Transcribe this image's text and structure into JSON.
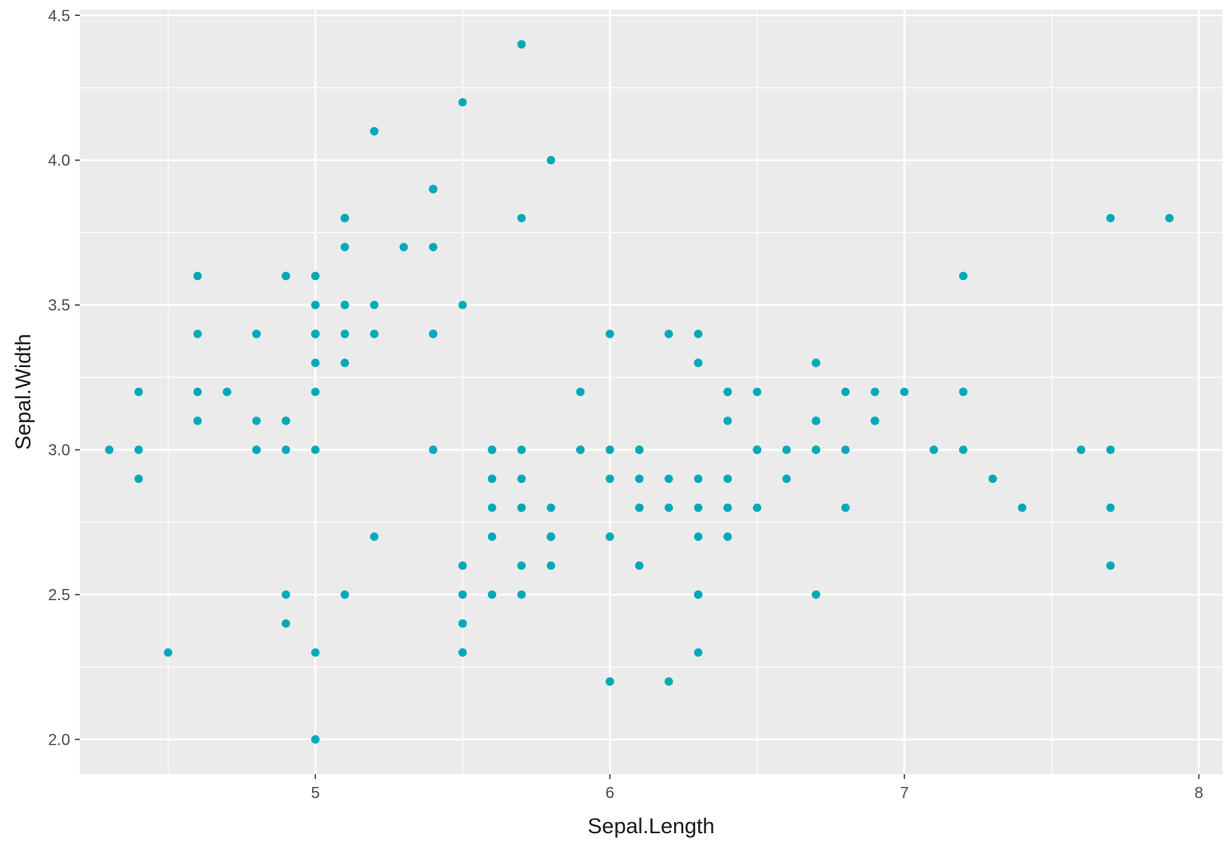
{
  "chart_data": {
    "type": "scatter",
    "xlabel": "Sepal.Length",
    "ylabel": "Sepal.Width",
    "xlim": [
      4.2,
      8.08
    ],
    "ylim": [
      1.88,
      4.52
    ],
    "x_ticks": [
      5,
      6,
      7,
      8
    ],
    "x_tick_labels": [
      "5",
      "6",
      "7",
      "8"
    ],
    "y_ticks": [
      2.0,
      2.5,
      3.0,
      3.5,
      4.0,
      4.5
    ],
    "y_tick_labels": [
      "2.0",
      "2.5",
      "3.0",
      "3.5",
      "4.0",
      "4.5"
    ],
    "grid": true,
    "panel_color": "#ebebeb",
    "grid_color": "#ffffff",
    "point_color": "#00a9b7",
    "legend": "none",
    "points": [
      [
        5.1,
        3.5
      ],
      [
        4.9,
        3.0
      ],
      [
        4.7,
        3.2
      ],
      [
        4.6,
        3.1
      ],
      [
        5.0,
        3.6
      ],
      [
        5.4,
        3.9
      ],
      [
        4.6,
        3.4
      ],
      [
        5.0,
        3.4
      ],
      [
        4.4,
        2.9
      ],
      [
        4.9,
        3.1
      ],
      [
        5.4,
        3.7
      ],
      [
        4.8,
        3.4
      ],
      [
        4.8,
        3.0
      ],
      [
        4.3,
        3.0
      ],
      [
        5.8,
        4.0
      ],
      [
        5.7,
        4.4
      ],
      [
        5.4,
        3.9
      ],
      [
        5.1,
        3.5
      ],
      [
        5.7,
        3.8
      ],
      [
        5.1,
        3.8
      ],
      [
        5.4,
        3.4
      ],
      [
        5.1,
        3.7
      ],
      [
        4.6,
        3.6
      ],
      [
        5.1,
        3.3
      ],
      [
        4.8,
        3.4
      ],
      [
        5.0,
        3.0
      ],
      [
        5.0,
        3.4
      ],
      [
        5.2,
        3.5
      ],
      [
        5.2,
        3.4
      ],
      [
        4.7,
        3.2
      ],
      [
        4.8,
        3.1
      ],
      [
        5.4,
        3.4
      ],
      [
        5.2,
        4.1
      ],
      [
        5.5,
        4.2
      ],
      [
        4.9,
        3.1
      ],
      [
        5.0,
        3.2
      ],
      [
        5.5,
        3.5
      ],
      [
        4.9,
        3.6
      ],
      [
        4.4,
        3.0
      ],
      [
        5.1,
        3.4
      ],
      [
        5.0,
        3.5
      ],
      [
        4.5,
        2.3
      ],
      [
        4.4,
        3.2
      ],
      [
        5.0,
        3.5
      ],
      [
        5.1,
        3.8
      ],
      [
        4.8,
        3.0
      ],
      [
        5.1,
        3.8
      ],
      [
        4.6,
        3.2
      ],
      [
        5.3,
        3.7
      ],
      [
        5.0,
        3.3
      ],
      [
        7.0,
        3.2
      ],
      [
        6.4,
        3.2
      ],
      [
        6.9,
        3.1
      ],
      [
        5.5,
        2.3
      ],
      [
        6.5,
        2.8
      ],
      [
        5.7,
        2.8
      ],
      [
        6.3,
        3.3
      ],
      [
        4.9,
        2.4
      ],
      [
        6.6,
        2.9
      ],
      [
        5.2,
        2.7
      ],
      [
        5.0,
        2.0
      ],
      [
        5.9,
        3.0
      ],
      [
        6.0,
        2.2
      ],
      [
        6.1,
        2.9
      ],
      [
        5.6,
        2.9
      ],
      [
        6.7,
        3.1
      ],
      [
        5.6,
        3.0
      ],
      [
        5.8,
        2.7
      ],
      [
        6.2,
        2.2
      ],
      [
        5.6,
        2.5
      ],
      [
        5.9,
        3.2
      ],
      [
        6.1,
        2.8
      ],
      [
        6.3,
        2.5
      ],
      [
        6.1,
        2.8
      ],
      [
        6.4,
        2.9
      ],
      [
        6.6,
        3.0
      ],
      [
        6.8,
        2.8
      ],
      [
        6.7,
        3.0
      ],
      [
        6.0,
        2.9
      ],
      [
        5.7,
        2.6
      ],
      [
        5.5,
        2.4
      ],
      [
        5.5,
        2.4
      ],
      [
        5.8,
        2.7
      ],
      [
        6.0,
        2.7
      ],
      [
        5.4,
        3.0
      ],
      [
        6.0,
        3.4
      ],
      [
        6.7,
        3.1
      ],
      [
        6.3,
        2.3
      ],
      [
        5.6,
        3.0
      ],
      [
        5.5,
        2.5
      ],
      [
        5.5,
        2.6
      ],
      [
        6.1,
        3.0
      ],
      [
        5.8,
        2.6
      ],
      [
        5.0,
        2.3
      ],
      [
        5.6,
        2.7
      ],
      [
        5.7,
        3.0
      ],
      [
        5.7,
        2.9
      ],
      [
        6.2,
        2.9
      ],
      [
        5.1,
        2.5
      ],
      [
        5.7,
        2.8
      ],
      [
        6.3,
        3.3
      ],
      [
        5.8,
        2.7
      ],
      [
        7.1,
        3.0
      ],
      [
        6.3,
        2.9
      ],
      [
        6.5,
        3.0
      ],
      [
        7.6,
        3.0
      ],
      [
        4.9,
        2.5
      ],
      [
        7.3,
        2.9
      ],
      [
        6.7,
        2.5
      ],
      [
        7.2,
        3.6
      ],
      [
        6.5,
        3.2
      ],
      [
        6.4,
        2.7
      ],
      [
        6.8,
        3.0
      ],
      [
        5.7,
        2.5
      ],
      [
        5.8,
        2.8
      ],
      [
        6.4,
        3.2
      ],
      [
        6.5,
        3.0
      ],
      [
        7.7,
        3.8
      ],
      [
        7.7,
        2.6
      ],
      [
        6.0,
        2.2
      ],
      [
        6.9,
        3.2
      ],
      [
        5.6,
        2.8
      ],
      [
        7.7,
        2.8
      ],
      [
        6.3,
        2.7
      ],
      [
        6.7,
        3.3
      ],
      [
        7.2,
        3.2
      ],
      [
        6.2,
        2.8
      ],
      [
        6.1,
        3.0
      ],
      [
        6.4,
        2.8
      ],
      [
        7.2,
        3.0
      ],
      [
        7.4,
        2.8
      ],
      [
        7.9,
        3.8
      ],
      [
        6.4,
        2.8
      ],
      [
        6.3,
        2.8
      ],
      [
        6.1,
        2.6
      ],
      [
        7.7,
        3.0
      ],
      [
        6.3,
        3.4
      ],
      [
        6.4,
        3.1
      ],
      [
        6.0,
        3.0
      ],
      [
        6.9,
        3.1
      ],
      [
        6.7,
        3.1
      ],
      [
        6.9,
        3.1
      ],
      [
        5.8,
        2.7
      ],
      [
        6.8,
        3.2
      ],
      [
        6.7,
        3.3
      ],
      [
        6.7,
        3.0
      ],
      [
        6.3,
        2.5
      ],
      [
        6.5,
        3.0
      ],
      [
        6.2,
        3.4
      ],
      [
        5.9,
        3.0
      ]
    ]
  }
}
